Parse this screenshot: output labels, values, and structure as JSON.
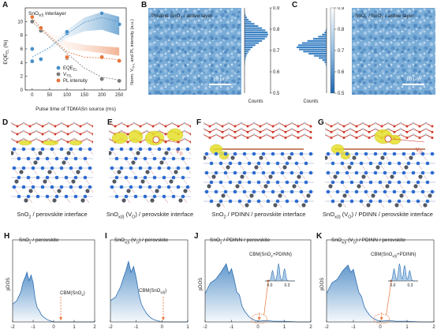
{
  "panel_letters": {
    "a": "A",
    "b": "B",
    "c": "C",
    "d": "D",
    "e": "E",
    "f": "F",
    "g": "G",
    "h": "H",
    "i": "I",
    "j": "J",
    "k": "K"
  },
  "colors": {
    "eqe": "#4a90c8",
    "vtfl": "#7a7a7a",
    "pl": "#e8743a",
    "map": "#6fa3d2",
    "bar": "#3b82c4",
    "atom_sn": "#555a62",
    "atom_o": "#d03a2a",
    "atom_b": "#2e6bd0",
    "iso": "#e6e02a"
  },
  "panel_a": {
    "ylabel_left": "EQE",
    "ylabel_left_sub": "EL",
    "ylabel_left_unit": " (%)",
    "ylabel_right": "Norm. V",
    "ylabel_right_sub": "TFL",
    "ylabel_right_tail": " and PL intensity (a.u.)",
    "xlabel": "Pulse time of TDMASn source (ms)",
    "inset_title": "SnO",
    "inset_title_sub": "x(l)",
    "inset_title_tail": " interlayer",
    "legend": [
      {
        "name": "EQE",
        "sub": "EL",
        "color": "#4a90c8"
      },
      {
        "name": "V",
        "sub": "TFL",
        "color": "#7a7a7a"
      },
      {
        "name": "PL intensity",
        "sub": "",
        "color": "#e8743a"
      }
    ]
  },
  "chart_data": [
    {
      "type": "scatter",
      "title": "",
      "xlabel": "Pulse time of TDMASn source (ms)",
      "ylabel": "EQEEL (%)",
      "xlim": [
        -20,
        270
      ],
      "ylim": [
        0,
        12
      ],
      "xticks": [
        0,
        50,
        100,
        150,
        200,
        250
      ],
      "yticks": [
        0,
        2,
        4,
        6,
        8,
        10
      ],
      "series": [
        {
          "name": "EQEEL",
          "axis": "left",
          "x": [
            0,
            0,
            25,
            100,
            100,
            200,
            250
          ],
          "y": [
            4.2,
            6.0,
            4.5,
            8.3,
            8.5,
            11.2,
            9.6
          ]
        },
        {
          "name": "VTFL",
          "axis": "right",
          "x": [
            0,
            25,
            100,
            200,
            250
          ],
          "y": [
            0.95,
            0.85,
            0.55,
            0.32,
            0.3
          ]
        },
        {
          "name": "PL intensity",
          "axis": "right",
          "x": [
            0,
            25,
            100,
            200,
            250
          ],
          "y": [
            1.0,
            0.88,
            0.56,
            0.56,
            0.52
          ]
        }
      ]
    },
    {
      "type": "bar",
      "title": "Pristine SnO2 / active layer",
      "orientation": "horizontal",
      "xlabel": "Counts",
      "ylim": [
        0.5,
        0.9
      ],
      "yticks": [
        0.5,
        0.6,
        0.7,
        0.8,
        0.9
      ],
      "bins": [
        0.505,
        0.515,
        0.525,
        0.535,
        0.545,
        0.555,
        0.565,
        0.575,
        0.585,
        0.595,
        0.605,
        0.615,
        0.625,
        0.635,
        0.645,
        0.655,
        0.665,
        0.675,
        0.685,
        0.695,
        0.705,
        0.715,
        0.725,
        0.735,
        0.745,
        0.755,
        0.765,
        0.775,
        0.785,
        0.795,
        0.805,
        0.815,
        0.825,
        0.835,
        0.845,
        0.855,
        0.865,
        0.875,
        0.885,
        0.895
      ],
      "values": [
        0,
        0,
        0,
        0,
        0,
        0,
        0,
        0,
        0,
        0,
        0,
        0,
        0,
        1,
        2,
        3,
        5,
        8,
        12,
        18,
        25,
        34,
        46,
        60,
        74,
        86,
        96,
        100,
        97,
        88,
        74,
        58,
        42,
        28,
        17,
        10,
        5,
        2,
        1,
        0
      ]
    },
    {
      "type": "bar",
      "title": "SnOx / SnO2 / active layer",
      "orientation": "horizontal",
      "xlabel": "Counts",
      "ylim": [
        0.5,
        0.9
      ],
      "yticks": [
        0.5,
        0.6,
        0.7,
        0.8,
        0.9
      ],
      "bins": [
        0.505,
        0.515,
        0.525,
        0.535,
        0.545,
        0.555,
        0.565,
        0.575,
        0.585,
        0.595,
        0.605,
        0.615,
        0.625,
        0.635,
        0.645,
        0.655,
        0.665,
        0.675,
        0.685,
        0.695,
        0.705,
        0.715,
        0.725,
        0.735,
        0.745,
        0.755,
        0.765,
        0.775,
        0.785,
        0.795,
        0.805,
        0.815,
        0.825,
        0.835,
        0.845,
        0.855,
        0.865,
        0.875,
        0.885,
        0.895
      ],
      "values": [
        0,
        0,
        0,
        0,
        0,
        0,
        0,
        0,
        0,
        0,
        0,
        0,
        1,
        3,
        7,
        14,
        26,
        42,
        60,
        78,
        92,
        100,
        95,
        82,
        64,
        45,
        28,
        15,
        7,
        3,
        1,
        0,
        0,
        0,
        0,
        0,
        0,
        0,
        0,
        0
      ]
    },
    {
      "type": "area",
      "title": "SnO2 / perovskite",
      "xlabel": "",
      "ylabel": "pDOS",
      "xlim": [
        -2,
        2
      ],
      "x": [
        -2.0,
        -1.8,
        -1.6,
        -1.5,
        -1.4,
        -1.3,
        -1.2,
        -1.1,
        -1.0,
        -0.9,
        -0.8,
        -0.7,
        -0.6,
        -0.5,
        -0.4,
        -0.3,
        -0.2,
        -0.1,
        0.0,
        0.2,
        0.5,
        1.0,
        1.5,
        2.0
      ],
      "y": [
        0.25,
        0.3,
        0.42,
        0.55,
        0.62,
        0.7,
        0.58,
        0.66,
        0.55,
        0.32,
        0.2,
        0.16,
        0.1,
        0.07,
        0.05,
        0.03,
        0.02,
        0.01,
        0.0,
        0,
        0,
        0,
        0,
        0
      ],
      "annotations": [
        "CBM(SnO2)"
      ]
    },
    {
      "type": "area",
      "title": "SnOx(l) (VO) / perovskite",
      "xlabel": "",
      "ylabel": "",
      "xlim": [
        -2,
        1
      ],
      "x": [
        -2.0,
        -1.8,
        -1.6,
        -1.5,
        -1.4,
        -1.3,
        -1.2,
        -1.1,
        -1.0,
        -0.9,
        -0.8,
        -0.7,
        -0.6,
        -0.5,
        -0.4,
        -0.3,
        -0.2,
        -0.1,
        0.0,
        0.5,
        1.0
      ],
      "y": [
        0.3,
        0.35,
        0.5,
        0.62,
        0.72,
        0.85,
        0.7,
        0.78,
        0.62,
        0.4,
        0.25,
        0.18,
        0.12,
        0.08,
        0.05,
        0.03,
        0.02,
        0.01,
        0.0,
        0,
        0
      ],
      "annotations": [
        "CBM(SnOx(l))"
      ]
    },
    {
      "type": "area",
      "title": "SnO2 / PDINN / perovskite",
      "xlabel": "",
      "ylabel": "pDOS",
      "xlim": [
        -2,
        2
      ],
      "x": [
        -2.0,
        -1.8,
        -1.6,
        -1.4,
        -1.2,
        -1.1,
        -1.0,
        -0.9,
        -0.8,
        -0.7,
        -0.6,
        -0.5,
        -0.4,
        -0.3,
        -0.2,
        -0.1,
        0.0,
        0.3,
        0.6,
        1.0,
        1.5,
        2.0
      ],
      "y": [
        0.4,
        0.55,
        0.6,
        0.7,
        0.82,
        0.68,
        0.75,
        0.6,
        0.42,
        0.38,
        0.22,
        0.15,
        0.1,
        0.06,
        0.04,
        0.02,
        0.01,
        0.02,
        0.01,
        0.01,
        0.0,
        0.0
      ],
      "annotations": [
        "CBM(SnO2+PDINN)"
      ],
      "inset": {
        "xticks": [
          0.0,
          0.3
        ]
      }
    },
    {
      "type": "area",
      "title": "SnOx(l) (VO) / PDINN / perovskite",
      "xlabel": "",
      "ylabel": "pDOS",
      "xlim": [
        -2,
        2
      ],
      "x": [
        -2.0,
        -1.8,
        -1.6,
        -1.4,
        -1.2,
        -1.1,
        -1.0,
        -0.9,
        -0.8,
        -0.7,
        -0.6,
        -0.5,
        -0.4,
        -0.3,
        -0.2,
        -0.1,
        0.0,
        0.3,
        0.6,
        1.0,
        1.5,
        2.0
      ],
      "y": [
        0.4,
        0.55,
        0.6,
        0.72,
        0.8,
        0.7,
        0.74,
        0.58,
        0.42,
        0.36,
        0.22,
        0.15,
        0.1,
        0.06,
        0.04,
        0.02,
        0.01,
        0.02,
        0.01,
        0.01,
        0.0,
        0.0
      ],
      "annotations": [
        "CBM(SnOx(l)+PDINN)"
      ],
      "inset": {
        "xticks": [
          0.0,
          0.3
        ]
      }
    }
  ],
  "panel_b": {
    "title": "Pristine SnO",
    "title_sub": "2",
    "title_tail": " / active layer",
    "scalebar": "10 μm",
    "hist_xlabel": "Counts"
  },
  "panel_c": {
    "title": "SnO",
    "title_sub": "x",
    "title_mid": " / SnO",
    "title_sub2": "2",
    "title_tail": " / active layer",
    "scalebar": "10 μm",
    "hist_xlabel": "Counts"
  },
  "captions": {
    "d": {
      "pre": "SnO",
      "sub": "2",
      "post": " / perovskite interface"
    },
    "e": {
      "pre": "SnO",
      "sub": "x(l)",
      "post": " (V",
      "sub2": "O",
      "post2": ") / perovskite interface"
    },
    "f": {
      "pre": "SnO",
      "sub": "2",
      "post": " / PDINN / perovskite interface"
    },
    "g": {
      "pre": "SnO",
      "sub": "x(l)",
      "post": " (V",
      "sub2": "O",
      "post2": ") / PDINN / perovskite interface"
    }
  },
  "vo_label": {
    "pre": "V",
    "sub": "O"
  },
  "pdos": {
    "h": {
      "title_pre": "SnO",
      "title_sub": "2",
      "title_post": " / perovskite",
      "cbm_pre": "CBM(SnO",
      "cbm_sub": "2",
      "cbm_post": ")",
      "ylabel": "pDOS"
    },
    "i": {
      "title_pre": "SnO",
      "title_sub": "x(l)",
      "title_post": " (V",
      "title_sub2": "O",
      "title_post2": ") / perovskite",
      "cbm_pre": "CBM(SnO",
      "cbm_sub": "x(l)",
      "cbm_post": ")"
    },
    "j": {
      "title_pre": "SnO",
      "title_sub": "2",
      "title_post": " / PDINN / perovskite",
      "cbm_pre": "CBM(SnO",
      "cbm_sub": "2",
      "cbm_post": "+PDINN)",
      "ylabel": "pDOS"
    },
    "k": {
      "title_pre": "SnO",
      "title_sub": "x(l)",
      "title_post": " (V",
      "title_sub2": "O",
      "title_post2": ") / PDINN / perovskite",
      "cbm_pre": "CBM(SnO",
      "cbm_sub": "x(l)",
      "cbm_post": "+PDINN)",
      "ylabel": "pDOS"
    }
  }
}
